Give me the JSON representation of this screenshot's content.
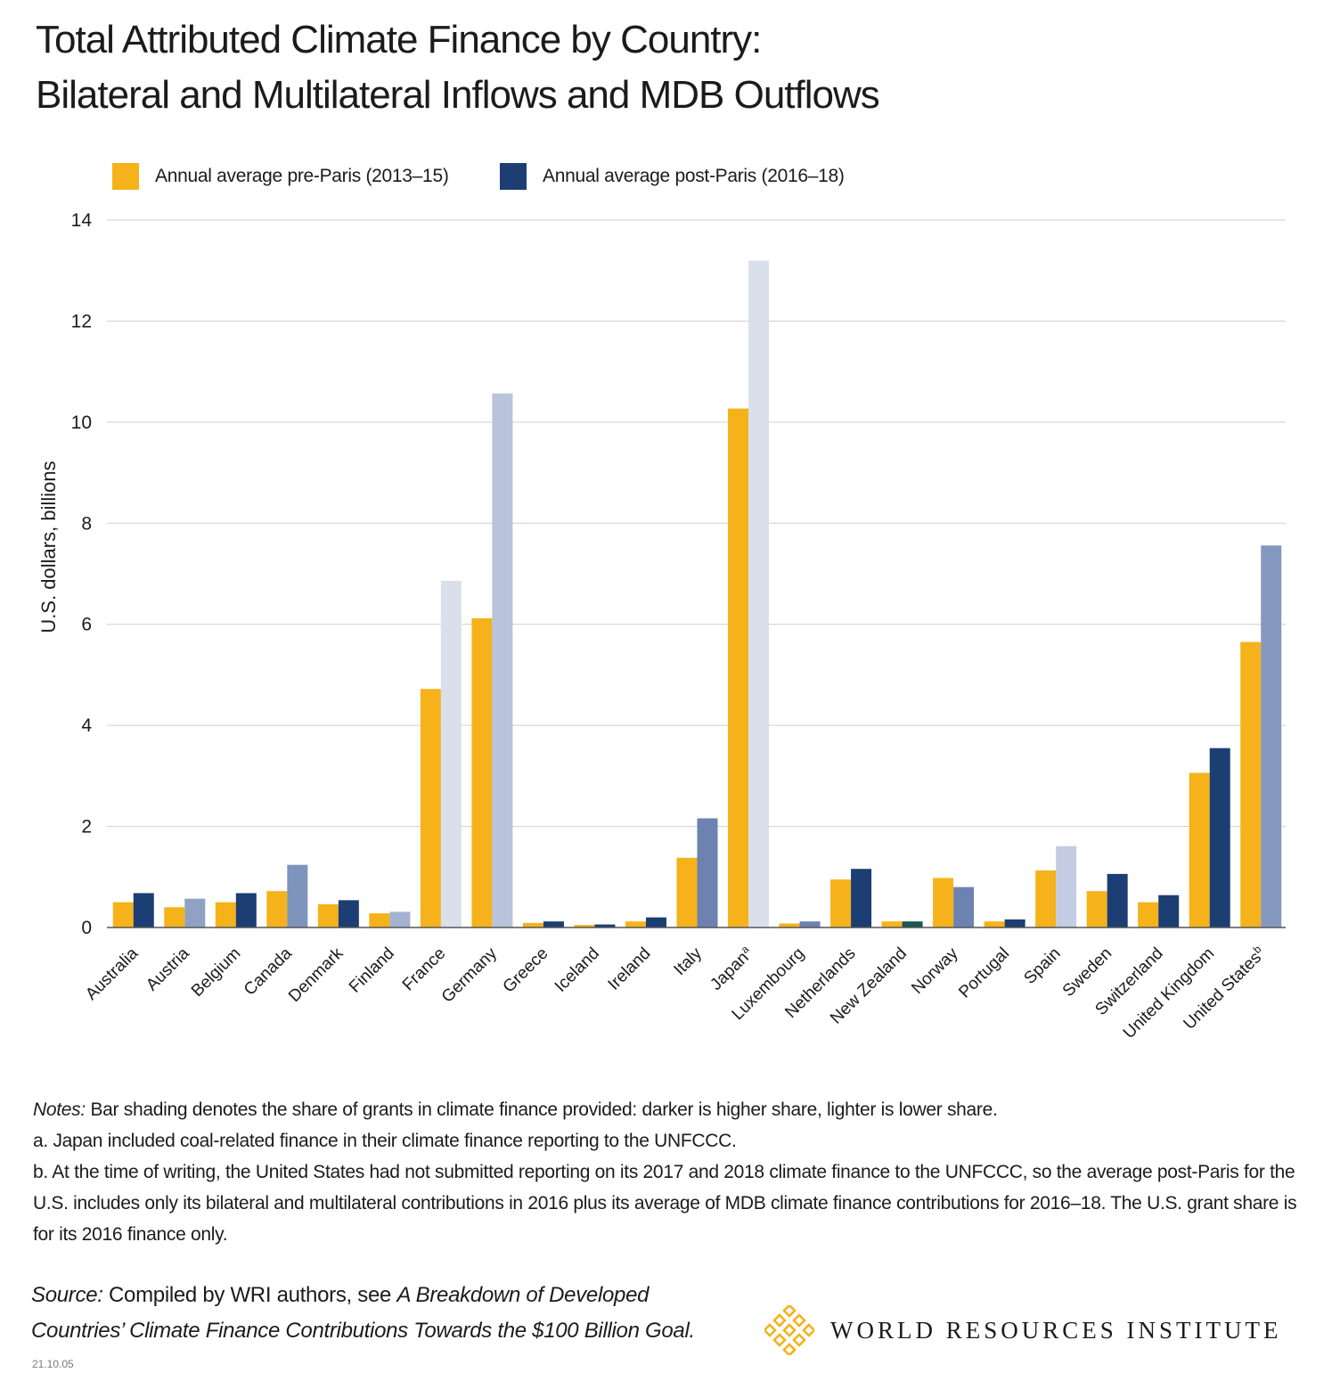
{
  "title": {
    "line1": "Total Attributed Climate Finance by Country:",
    "line2": "Bilateral and Multilateral Inflows and MDB Outflows"
  },
  "legend": [
    {
      "label": "Annual average pre-Paris (2013–15)",
      "color": "#F5B21A"
    },
    {
      "label": "Annual average post-Paris (2016–18)",
      "color": "#1C3E73"
    }
  ],
  "chart_data": {
    "type": "bar",
    "ylabel": "U.S. dollars, billions",
    "ylim": [
      0,
      14
    ],
    "yticks": [
      0,
      2,
      4,
      6,
      8,
      10,
      12,
      14
    ],
    "grid": true,
    "legend_position": "top-left",
    "categories": [
      "Australia",
      "Austria",
      "Belgium",
      "Canada",
      "Denmark",
      "Finland",
      "France",
      "Germany",
      "Greece",
      "Iceland",
      "Ireland",
      "Italy",
      "Japan",
      "Luxembourg",
      "Netherlands",
      "New Zealand",
      "Norway",
      "Portugal",
      "Spain",
      "Sweden",
      "Switzerland",
      "United Kingdom",
      "United States"
    ],
    "category_superscripts": {
      "Japan": "a",
      "United States": "b"
    },
    "series": [
      {
        "name": "Annual average pre-Paris (2013–15)",
        "values": [
          0.5,
          0.4,
          0.5,
          0.72,
          0.46,
          0.28,
          4.72,
          6.12,
          0.09,
          0.05,
          0.12,
          1.38,
          10.27,
          0.08,
          0.95,
          0.12,
          0.98,
          0.12,
          1.13,
          0.72,
          0.5,
          3.06,
          5.65
        ],
        "colors": [
          "#F5B21A",
          "#F5B21A",
          "#F5B21A",
          "#F5B21A",
          "#F5B21A",
          "#F5B21A",
          "#F5B21A",
          "#F5B21A",
          "#F5B21A",
          "#F5B21A",
          "#F5B21A",
          "#F5B21A",
          "#F5B21A",
          "#F5B21A",
          "#F5B21A",
          "#F5B21A",
          "#F5B21A",
          "#F5B21A",
          "#F5B21A",
          "#F5B21A",
          "#F5B21A",
          "#F5B21A",
          "#F5B21A"
        ]
      },
      {
        "name": "Annual average post-Paris (2016–18)",
        "values": [
          0.68,
          0.57,
          0.68,
          1.24,
          0.54,
          0.31,
          6.86,
          10.57,
          0.12,
          0.06,
          0.2,
          2.16,
          13.2,
          0.12,
          1.16,
          0.12,
          0.8,
          0.16,
          1.61,
          1.06,
          0.64,
          3.55,
          7.56
        ],
        "colors": [
          "#1C3E73",
          "#8FA2C4",
          "#1C3E73",
          "#7F94BC",
          "#1C3E73",
          "#A3B2D0",
          "#DADFEC",
          "#B9C3DC",
          "#1C3E73",
          "#1C3E73",
          "#1C3E73",
          "#6C82B1",
          "#DADFEC",
          "#6C82B1",
          "#1C3E73",
          "#1A5652",
          "#6C82B1",
          "#1C3E73",
          "#C3CCE2",
          "#1C3E73",
          "#1C3E73",
          "#1C3E73",
          "#8498BF"
        ]
      }
    ]
  },
  "notes": {
    "lead": "Notes:",
    "line1": " Bar shading denotes the share of grants in climate finance provided: darker is higher share, lighter is lower share.",
    "line2": "a. Japan included coal-related finance in their climate finance reporting to the UNFCCC.",
    "line3": "b. At the time of writing, the United States had not submitted reporting on its 2017 and 2018 climate finance to the UNFCCC, so the average post-Paris for the U.S. includes only its bilateral and multilateral contributions in 2016 plus its average of MDB climate finance contributions for 2016–18. The U.S. grant share is for its 2016 finance only."
  },
  "source": {
    "lead": "Source:",
    "text": " Compiled by WRI authors, see ",
    "title": "A Breakdown of Developed Countries’ Climate Finance Contributions Towards the $100 Billion Goal."
  },
  "logo": {
    "text": "WORLD RESOURCES INSTITUTE",
    "color": "#F5B21A"
  },
  "code": "21.10.05"
}
